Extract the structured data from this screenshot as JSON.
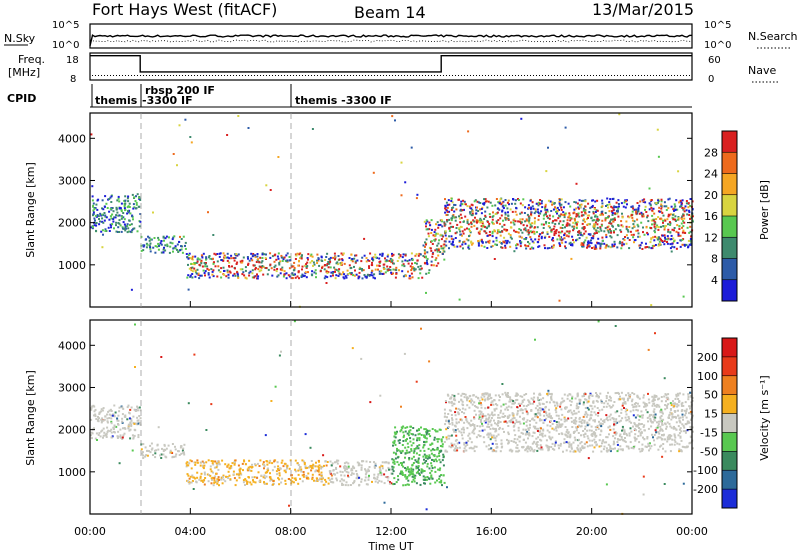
{
  "header": {
    "station": "Fort Hays West (fitACF)",
    "beam": "Beam 14",
    "date": "13/Mar/2015"
  },
  "sky_panel": {
    "left_label": "N.Sky",
    "left_ticks": [
      "10^5",
      "10^0"
    ],
    "right_ticks": [
      "10^5",
      "10^0"
    ],
    "right_label": "N.Search"
  },
  "freq_panel": {
    "left_label_1": "Freq.",
    "left_label_2": "[MHz]",
    "left_ticks": [
      "18",
      "8"
    ],
    "right_ticks": [
      "60",
      "0"
    ],
    "right_label": "Nave",
    "segments": [
      {
        "start_h": 0.0,
        "end_h": 2.0,
        "freq_mhz": 17
      },
      {
        "start_h": 2.0,
        "end_h": 14.0,
        "freq_mhz": 11
      },
      {
        "start_h": 14.0,
        "end_h": 24.0,
        "freq_mhz": 17
      }
    ],
    "nave_level": 10
  },
  "cpid": {
    "label": "CPID",
    "entries": [
      {
        "start_h": 0.0,
        "line1": "themis",
        "line2": ""
      },
      {
        "start_h": 2.0,
        "line1": "rbsp 200 IF",
        "line2": "-3300 IF"
      },
      {
        "start_h": 8.0,
        "line1": "themis -3300 IF",
        "line2": ""
      }
    ]
  },
  "chart_data": [
    {
      "type": "heatmap",
      "name": "power",
      "ylabel": "Slant Range [km]",
      "ylim": [
        0,
        4600
      ],
      "yticks": [
        "1000",
        "2000",
        "3000",
        "4000"
      ],
      "xlim": [
        0,
        24
      ],
      "colorbar_label": "Power [dB]",
      "colorbar_ticks": [
        "4",
        "8",
        "12",
        "16",
        "20",
        "24",
        "28"
      ],
      "colors": [
        "#1c1cd8",
        "#2d5ba8",
        "#3e8a6e",
        "#58c850",
        "#d8d440",
        "#f5a623",
        "#ee6a1c",
        "#d92020"
      ],
      "scatter_regions": [
        {
          "t0": 0.0,
          "t1": 2.0,
          "r0": 1800,
          "r1": 2700,
          "level": "mid"
        },
        {
          "t0": 2.0,
          "t1": 3.8,
          "r0": 1300,
          "r1": 1700,
          "level": "mid"
        },
        {
          "t0": 3.8,
          "t1": 13.5,
          "r0": 700,
          "r1": 1300,
          "level": "high"
        },
        {
          "t0": 13.3,
          "t1": 14.1,
          "r0": 1000,
          "r1": 2100,
          "level": "high"
        },
        {
          "t0": 14.1,
          "t1": 24.0,
          "r0": 1400,
          "r1": 2600,
          "level": "high"
        }
      ]
    },
    {
      "type": "heatmap",
      "name": "velocity",
      "ylabel": "Slant Range [km]",
      "ylim": [
        0,
        4600
      ],
      "yticks": [
        "1000",
        "2000",
        "3000",
        "4000"
      ],
      "xlim": [
        0,
        24
      ],
      "xticks": [
        "00:00",
        "04:00",
        "08:00",
        "12:00",
        "16:00",
        "20:00",
        "00:00"
      ],
      "xlabel": "Time UT",
      "colorbar_label": "Velocity [m s⁻¹]",
      "colorbar_ticks": [
        "200",
        "100",
        "50",
        "15",
        "-15",
        "-50",
        "-100",
        "-200"
      ],
      "colors": [
        "#1c2dd8",
        "#2d6a9a",
        "#3a8a5e",
        "#58c850",
        "#c8c8c0",
        "#f5b020",
        "#ee8020",
        "#e83a1a",
        "#d81818"
      ],
      "scatter_regions": [
        {
          "t0": 0.0,
          "t1": 2.0,
          "r0": 1800,
          "r1": 2600,
          "level": "grey"
        },
        {
          "t0": 2.0,
          "t1": 3.8,
          "r0": 1350,
          "r1": 1700,
          "level": "grey"
        },
        {
          "t0": 3.8,
          "t1": 9.5,
          "r0": 700,
          "r1": 1300,
          "level": "orange"
        },
        {
          "t0": 9.5,
          "t1": 12.0,
          "r0": 700,
          "r1": 1300,
          "level": "grey"
        },
        {
          "t0": 12.0,
          "t1": 14.1,
          "r0": 700,
          "r1": 2100,
          "level": "green"
        },
        {
          "t0": 14.1,
          "t1": 24.0,
          "r0": 1500,
          "r1": 2900,
          "level": "grey"
        }
      ]
    }
  ]
}
